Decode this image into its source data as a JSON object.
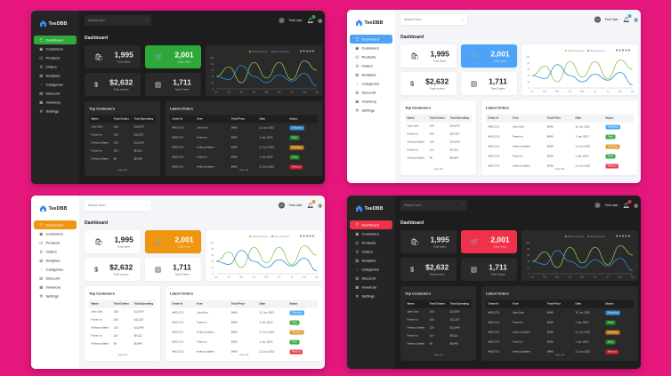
{
  "app": {
    "name": "TeeDBB"
  },
  "themes": [
    {
      "mode": "dark",
      "accent": "#2fa83a"
    },
    {
      "mode": "light",
      "accent": "#4da3f7"
    },
    {
      "mode": "light",
      "accent": "#f0950f"
    },
    {
      "mode": "dark",
      "accent": "#f0314a"
    }
  ],
  "sidebar": {
    "items": [
      {
        "label": "Dashboard",
        "icon": "grid-icon",
        "glyph": "☰"
      },
      {
        "label": "Customers",
        "icon": "users-icon",
        "glyph": "▣"
      },
      {
        "label": "Products",
        "icon": "box-icon",
        "glyph": "◫"
      },
      {
        "label": "Orders",
        "icon": "cart-icon",
        "glyph": "⊡"
      },
      {
        "label": "Analytics",
        "icon": "chart-icon",
        "glyph": "▥"
      },
      {
        "label": "Categories",
        "icon": "tag-icon",
        "glyph": "⁝"
      },
      {
        "label": "Discount",
        "icon": "percent-icon",
        "glyph": "▤"
      },
      {
        "label": "Inventory",
        "icon": "inventory-icon",
        "glyph": "▦"
      },
      {
        "label": "Settings",
        "icon": "gear-icon",
        "glyph": "⚙"
      }
    ]
  },
  "header": {
    "search_placeholder": "Search here...",
    "user_name": "Test User"
  },
  "page_title": "Dashboard",
  "stats": [
    {
      "value": "1,995",
      "label": "Total Sales",
      "icon": "bag-icon",
      "glyph": "🛍"
    },
    {
      "value": "2,001",
      "label": "Daily Visits",
      "icon": "cart-icon",
      "glyph": "🛒"
    },
    {
      "value": "$2,632",
      "label": "Total Income",
      "icon": "dollar-icon",
      "glyph": "$"
    },
    {
      "value": "1,711",
      "label": "Total Orders",
      "icon": "receipt-icon",
      "glyph": "▤"
    }
  ],
  "chart_data": {
    "type": "line",
    "x": [
      "Jan",
      "Feb",
      "Mar",
      "Apr",
      "May",
      "Jun",
      "Jul",
      "Aug",
      "Sep"
    ],
    "series": [
      {
        "name": "Online Customers",
        "color": "#8bc34a",
        "values": [
          40,
          70,
          20,
          85,
          35,
          85,
          30,
          90,
          60
        ]
      },
      {
        "name": "Store Customers",
        "color": "#2f8fd8",
        "values": [
          40,
          30,
          75,
          40,
          20,
          45,
          25,
          50,
          10
        ]
      }
    ],
    "ylim": [
      0,
      100
    ],
    "yticks": [
      0,
      20,
      40,
      60,
      80,
      100
    ],
    "legend": "top-center"
  },
  "top_customers": {
    "title": "Top Customers",
    "columns": [
      "Name",
      "Total Orders",
      "Total Spending"
    ],
    "rows": [
      [
        "John Doe",
        "100",
        "$13,879"
      ],
      [
        "Frank Iro",
        "250",
        "$12,257"
      ],
      [
        "Anthony Baker",
        "120",
        "$12,840"
      ],
      [
        "Frank Iro",
        "110",
        "$9,221"
      ],
      [
        "Anthony Baker",
        "80",
        "$8,840"
      ]
    ],
    "view_all": "View All"
  },
  "latest_orders": {
    "title": "Latest Orders",
    "columns": [
      "Order Id",
      "User",
      "Total Price",
      "Date",
      "Status"
    ],
    "rows": [
      [
        "#SD1713",
        "John Doe",
        "$499",
        "11 Jun 2023",
        "Shipping"
      ],
      [
        "#SD1713",
        "Frank Iro",
        "$499",
        "1 Jan 2023",
        "Paid"
      ],
      [
        "#SD1713",
        "Anthony Baker",
        "$499",
        "21 Jun 2023",
        "Pending"
      ],
      [
        "#SD1713",
        "Frank Iro",
        "$499",
        "1 Jan 2023",
        "Paid"
      ],
      [
        "#SD1713",
        "Anthony Baker",
        "$499",
        "21 Jun 2023",
        "Refund"
      ]
    ],
    "status_colors": {
      "Shipping": "#2f9bf0",
      "Paid": "#1f9d2a",
      "Pending": "#e08a12",
      "Refund": "#e41d2b"
    },
    "view_all": "View All"
  }
}
